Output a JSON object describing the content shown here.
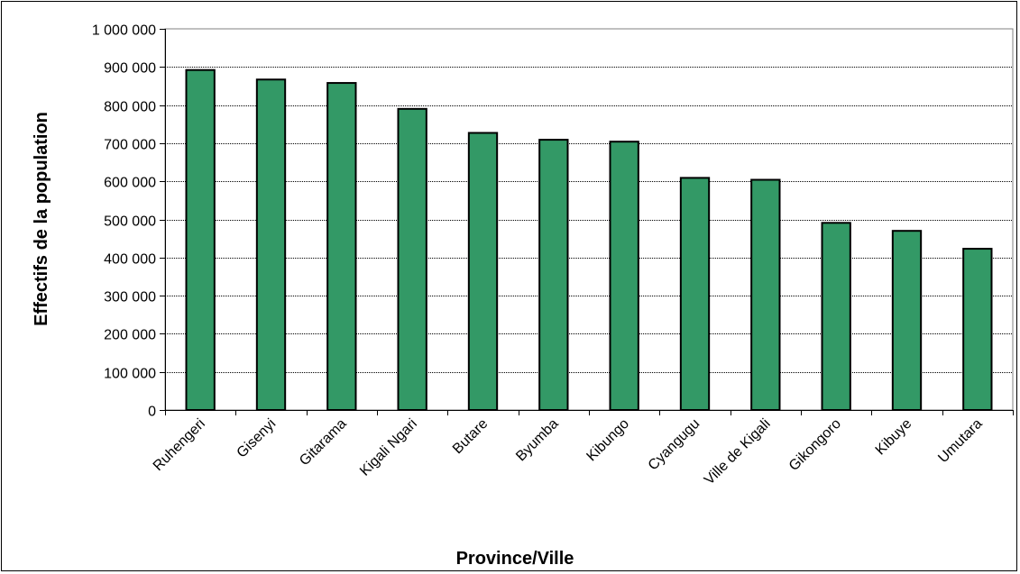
{
  "chart_data": {
    "type": "bar",
    "title": "",
    "xlabel": "Province/Ville",
    "ylabel": "Effectifs de la population",
    "ylim": [
      0,
      1000000
    ],
    "yticks": [
      0,
      100000,
      200000,
      300000,
      400000,
      500000,
      600000,
      700000,
      800000,
      900000,
      1000000
    ],
    "ytick_labels": [
      "0",
      "100 000",
      "200 000",
      "300 000",
      "400 000",
      "500 000",
      "600 000",
      "700 000",
      "800 000",
      "900 000",
      "1 000 000"
    ],
    "categories": [
      "Ruhengeri",
      "Gisenyi",
      "Gitarama",
      "Kigali Ngari",
      "Butare",
      "Byumba",
      "Kibungo",
      "Cyangugu",
      "Ville de Kigali",
      "Gikongoro",
      "Kibuye",
      "Umutara"
    ],
    "values": [
      892000,
      867000,
      858000,
      790000,
      727000,
      709000,
      704000,
      609000,
      604000,
      491000,
      470000,
      423000
    ],
    "grid": true,
    "legend": "none",
    "bar_color": "#339966"
  }
}
